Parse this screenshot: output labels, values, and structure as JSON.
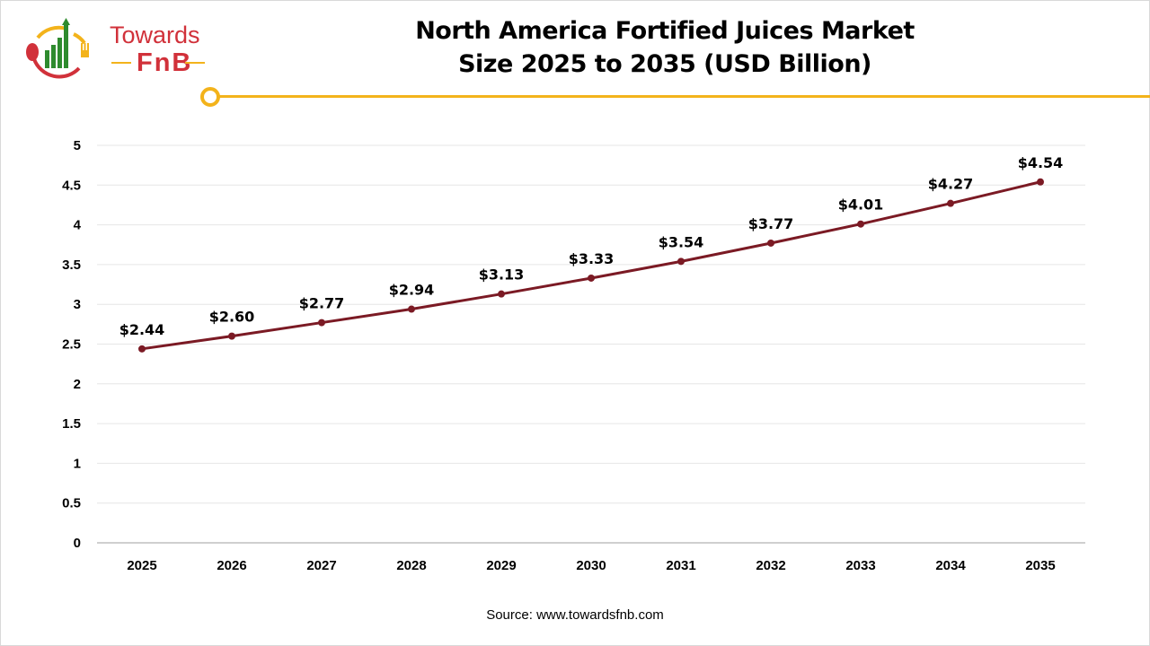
{
  "logo": {
    "line1": "Towards",
    "line2": "FnB"
  },
  "source": "Source: www.towardsfnb.com",
  "colors": {
    "line": "#7b1a24",
    "accent": "#f3b31b",
    "brand_red": "#d1313a",
    "brand_green": "#2e8b2e"
  },
  "chart_data": {
    "type": "line",
    "title": "North America Fortified Juices Market Size 2025 to 2035 (USD Billion)",
    "title_lines": [
      "North America Fortified Juices Market",
      "Size 2025 to 2035 (USD Billion)"
    ],
    "xlabel": "",
    "ylabel": "",
    "categories": [
      "2025",
      "2026",
      "2027",
      "2028",
      "2029",
      "2030",
      "2031",
      "2032",
      "2033",
      "2034",
      "2035"
    ],
    "values": [
      2.44,
      2.6,
      2.77,
      2.94,
      3.13,
      3.33,
      3.54,
      3.77,
      4.01,
      4.27,
      4.54
    ],
    "data_labels": [
      "$2.44",
      "$2.60",
      "$2.77",
      "$2.94",
      "$3.13",
      "$3.33",
      "$3.54",
      "$3.77",
      "$4.01",
      "$4.27",
      "$4.54"
    ],
    "ylim": [
      0,
      5
    ],
    "yticks": [
      "0",
      "0.5",
      "1",
      "1.5",
      "2",
      "2.5",
      "3",
      "3.5",
      "4",
      "4.5",
      "5"
    ],
    "grid": true,
    "legend": "none"
  }
}
